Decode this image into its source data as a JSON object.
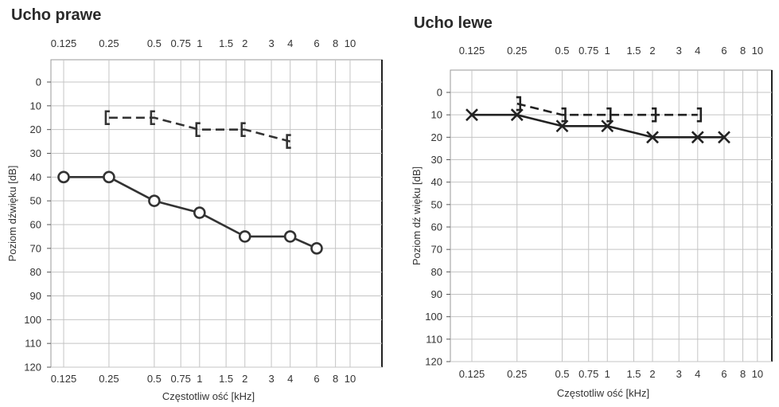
{
  "chart_data": [
    {
      "type": "line",
      "title": "Ucho prawe",
      "xlabel": "Częstotliw ość [kHz]",
      "ylabel": "Poziom dźwięku [dB]",
      "x_scale": "log",
      "x_ticks": [
        0.125,
        0.25,
        0.5,
        0.75,
        1,
        1.5,
        2,
        3,
        4,
        6,
        8,
        10
      ],
      "x_tick_labels": [
        "0.125",
        "0.25",
        "0.5",
        "0.75",
        "1",
        "1.5",
        "2",
        "3",
        "4",
        "6",
        "8",
        "10"
      ],
      "y_ticks": [
        0,
        10,
        20,
        30,
        40,
        50,
        60,
        70,
        80,
        90,
        100,
        110,
        120
      ],
      "y_tick_labels": [
        "0",
        "10",
        "20",
        "30",
        "40",
        "50",
        "60",
        "70",
        "80",
        "90",
        "100",
        "110",
        "120"
      ],
      "ylim": [
        0,
        120
      ],
      "y_inverted": true,
      "grid": true,
      "series": [
        {
          "marker": "circle",
          "line": "solid",
          "color": "#333333",
          "x": [
            0.125,
            0.25,
            0.5,
            1,
            2,
            4,
            6
          ],
          "y": [
            40,
            40,
            50,
            55,
            65,
            65,
            70
          ]
        },
        {
          "marker": "bracket-left",
          "line": "dashed",
          "color": "#333333",
          "x": [
            0.25,
            0.5,
            1,
            2,
            4
          ],
          "y": [
            15,
            15,
            20,
            20,
            25
          ]
        }
      ]
    },
    {
      "type": "line",
      "title": "Ucho lewe",
      "xlabel": "Częstotliw ość [kHz]",
      "ylabel": "Poziom dź więku [dB]",
      "x_scale": "log",
      "x_ticks": [
        0.125,
        0.25,
        0.5,
        0.75,
        1,
        1.5,
        2,
        3,
        4,
        6,
        8,
        10
      ],
      "x_tick_labels": [
        "0.125",
        "0.25",
        "0.5",
        "0.75",
        "1",
        "1.5",
        "2",
        "3",
        "4",
        "6",
        "8",
        "10"
      ],
      "y_ticks": [
        0,
        10,
        20,
        30,
        40,
        50,
        60,
        70,
        80,
        90,
        100,
        110,
        120
      ],
      "y_tick_labels": [
        "0",
        "10",
        "20",
        "30",
        "40",
        "50",
        "60",
        "70",
        "80",
        "90",
        "100",
        "110",
        "120"
      ],
      "ylim": [
        0,
        120
      ],
      "y_inverted": true,
      "grid": true,
      "series": [
        {
          "marker": "x",
          "line": "solid",
          "color": "#222222",
          "x": [
            0.125,
            0.25,
            0.5,
            1,
            2,
            4,
            6
          ],
          "y": [
            10,
            10,
            15,
            15,
            20,
            20,
            20
          ]
        },
        {
          "marker": "bracket-right",
          "line": "dashed",
          "color": "#222222",
          "x": [
            0.25,
            0.5,
            1,
            2,
            4
          ],
          "y": [
            5,
            10,
            10,
            10,
            10
          ]
        }
      ]
    }
  ]
}
